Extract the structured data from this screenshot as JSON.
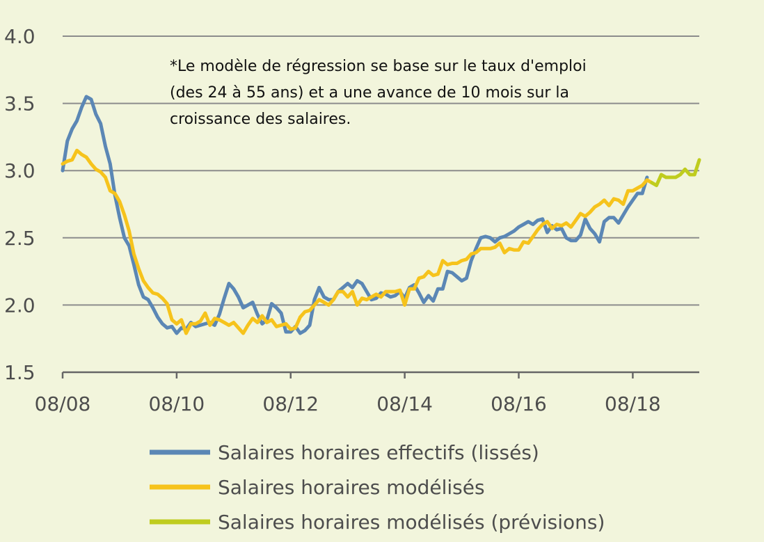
{
  "chart_data": {
    "type": "line",
    "title": "",
    "xlabel": "",
    "ylabel": "",
    "ylim": [
      1.5,
      4.0
    ],
    "y_ticks": [
      "1.5",
      "2.0",
      "2.5",
      "3.0",
      "3.5",
      "4.0"
    ],
    "x_ticks": [
      "08/08",
      "08/10",
      "08/12",
      "08/14",
      "08/16",
      "08/18"
    ],
    "x_range": [
      "2008-08",
      "2019-07"
    ],
    "grid": "horizontal",
    "legend_position": "bottom-left",
    "note": [
      "*Le modèle de régression se base sur le taux d'emploi",
      "(des 24 à 55 ans) et a une avance de 10 mois sur la",
      "croissance des salaires."
    ],
    "series": [
      {
        "name": "Salaires horaires effectifs (lissés)",
        "color": "#5b87b5",
        "points": [
          [
            "2008-08",
            3.0
          ],
          [
            "2008-09",
            3.22
          ],
          [
            "2008-10",
            3.31
          ],
          [
            "2008-11",
            3.37
          ],
          [
            "2008-12",
            3.47
          ],
          [
            "2009-01",
            3.55
          ],
          [
            "2009-02",
            3.53
          ],
          [
            "2009-03",
            3.42
          ],
          [
            "2009-04",
            3.35
          ],
          [
            "2009-05",
            3.18
          ],
          [
            "2009-06",
            3.05
          ],
          [
            "2009-07",
            2.82
          ],
          [
            "2009-08",
            2.65
          ],
          [
            "2009-09",
            2.5
          ],
          [
            "2009-10",
            2.44
          ],
          [
            "2009-11",
            2.3
          ],
          [
            "2009-12",
            2.15
          ],
          [
            "2010-01",
            2.06
          ],
          [
            "2010-02",
            2.04
          ],
          [
            "2010-03",
            1.98
          ],
          [
            "2010-04",
            1.91
          ],
          [
            "2010-05",
            1.86
          ],
          [
            "2010-06",
            1.83
          ],
          [
            "2010-07",
            1.84
          ],
          [
            "2010-08",
            1.79
          ],
          [
            "2010-09",
            1.83
          ],
          [
            "2010-10",
            1.82
          ],
          [
            "2010-11",
            1.87
          ],
          [
            "2010-12",
            1.84
          ],
          [
            "2011-01",
            1.85
          ],
          [
            "2011-02",
            1.86
          ],
          [
            "2011-03",
            1.87
          ],
          [
            "2011-04",
            1.85
          ],
          [
            "2011-05",
            1.93
          ],
          [
            "2011-06",
            2.05
          ],
          [
            "2011-07",
            2.16
          ],
          [
            "2011-08",
            2.12
          ],
          [
            "2011-09",
            2.06
          ],
          [
            "2011-10",
            1.98
          ],
          [
            "2011-11",
            2.0
          ],
          [
            "2011-12",
            2.02
          ],
          [
            "2012-01",
            1.93
          ],
          [
            "2012-02",
            1.86
          ],
          [
            "2012-03",
            1.89
          ],
          [
            "2012-04",
            2.01
          ],
          [
            "2012-05",
            1.98
          ],
          [
            "2012-06",
            1.94
          ],
          [
            "2012-07",
            1.8
          ],
          [
            "2012-08",
            1.8
          ],
          [
            "2012-09",
            1.84
          ],
          [
            "2012-10",
            1.79
          ],
          [
            "2012-11",
            1.81
          ],
          [
            "2012-12",
            1.85
          ],
          [
            "2013-01",
            2.04
          ],
          [
            "2013-02",
            2.13
          ],
          [
            "2013-03",
            2.06
          ],
          [
            "2013-04",
            2.04
          ],
          [
            "2013-05",
            2.04
          ],
          [
            "2013-06",
            2.1
          ],
          [
            "2013-07",
            2.13
          ],
          [
            "2013-08",
            2.16
          ],
          [
            "2013-09",
            2.13
          ],
          [
            "2013-10",
            2.18
          ],
          [
            "2013-11",
            2.16
          ],
          [
            "2013-12",
            2.1
          ],
          [
            "2014-01",
            2.04
          ],
          [
            "2014-02",
            2.05
          ],
          [
            "2014-03",
            2.09
          ],
          [
            "2014-04",
            2.08
          ],
          [
            "2014-05",
            2.06
          ],
          [
            "2014-06",
            2.07
          ],
          [
            "2014-07",
            2.1
          ],
          [
            "2014-08",
            2.05
          ],
          [
            "2014-09",
            2.13
          ],
          [
            "2014-10",
            2.15
          ],
          [
            "2014-11",
            2.09
          ],
          [
            "2014-12",
            2.02
          ],
          [
            "2015-01",
            2.07
          ],
          [
            "2015-02",
            2.03
          ],
          [
            "2015-03",
            2.12
          ],
          [
            "2015-04",
            2.12
          ],
          [
            "2015-05",
            2.25
          ],
          [
            "2015-06",
            2.24
          ],
          [
            "2015-07",
            2.21
          ],
          [
            "2015-08",
            2.18
          ],
          [
            "2015-09",
            2.2
          ],
          [
            "2015-10",
            2.33
          ],
          [
            "2015-11",
            2.42
          ],
          [
            "2015-12",
            2.5
          ],
          [
            "2016-01",
            2.51
          ],
          [
            "2016-02",
            2.5
          ],
          [
            "2016-03",
            2.47
          ],
          [
            "2016-04",
            2.5
          ],
          [
            "2016-05",
            2.51
          ],
          [
            "2016-06",
            2.53
          ],
          [
            "2016-07",
            2.55
          ],
          [
            "2016-08",
            2.58
          ],
          [
            "2016-09",
            2.6
          ],
          [
            "2016-10",
            2.62
          ],
          [
            "2016-11",
            2.6
          ],
          [
            "2016-12",
            2.63
          ],
          [
            "2017-01",
            2.64
          ],
          [
            "2017-02",
            2.54
          ],
          [
            "2017-03",
            2.59
          ],
          [
            "2017-04",
            2.56
          ],
          [
            "2017-05",
            2.57
          ],
          [
            "2017-06",
            2.5
          ],
          [
            "2017-07",
            2.48
          ],
          [
            "2017-08",
            2.48
          ],
          [
            "2017-09",
            2.52
          ],
          [
            "2017-10",
            2.64
          ],
          [
            "2017-11",
            2.57
          ],
          [
            "2017-12",
            2.53
          ],
          [
            "2018-01",
            2.47
          ],
          [
            "2018-02",
            2.62
          ],
          [
            "2018-03",
            2.65
          ],
          [
            "2018-04",
            2.65
          ],
          [
            "2018-05",
            2.61
          ],
          [
            "2018-06",
            2.67
          ],
          [
            "2018-07",
            2.73
          ],
          [
            "2018-08",
            2.78
          ],
          [
            "2018-09",
            2.83
          ],
          [
            "2018-10",
            2.83
          ],
          [
            "2018-11",
            2.95
          ]
        ]
      },
      {
        "name": "Salaires horaires modélisés",
        "color": "#f6c31c",
        "points": [
          [
            "2008-08",
            3.05
          ],
          [
            "2008-09",
            3.07
          ],
          [
            "2008-10",
            3.08
          ],
          [
            "2008-11",
            3.15
          ],
          [
            "2008-12",
            3.12
          ],
          [
            "2009-01",
            3.1
          ],
          [
            "2009-02",
            3.05
          ],
          [
            "2009-03",
            3.01
          ],
          [
            "2009-04",
            2.99
          ],
          [
            "2009-05",
            2.95
          ],
          [
            "2009-06",
            2.85
          ],
          [
            "2009-07",
            2.83
          ],
          [
            "2009-08",
            2.77
          ],
          [
            "2009-09",
            2.67
          ],
          [
            "2009-10",
            2.55
          ],
          [
            "2009-11",
            2.38
          ],
          [
            "2009-12",
            2.27
          ],
          [
            "2010-01",
            2.18
          ],
          [
            "2010-02",
            2.13
          ],
          [
            "2010-03",
            2.09
          ],
          [
            "2010-04",
            2.08
          ],
          [
            "2010-05",
            2.05
          ],
          [
            "2010-06",
            2.01
          ],
          [
            "2010-07",
            1.89
          ],
          [
            "2010-08",
            1.86
          ],
          [
            "2010-09",
            1.89
          ],
          [
            "2010-10",
            1.79
          ],
          [
            "2010-11",
            1.86
          ],
          [
            "2010-12",
            1.86
          ],
          [
            "2011-01",
            1.88
          ],
          [
            "2011-02",
            1.94
          ],
          [
            "2011-03",
            1.85
          ],
          [
            "2011-04",
            1.9
          ],
          [
            "2011-05",
            1.89
          ],
          [
            "2011-06",
            1.87
          ],
          [
            "2011-07",
            1.85
          ],
          [
            "2011-08",
            1.87
          ],
          [
            "2011-09",
            1.83
          ],
          [
            "2011-10",
            1.79
          ],
          [
            "2011-11",
            1.85
          ],
          [
            "2011-12",
            1.9
          ],
          [
            "2012-01",
            1.87
          ],
          [
            "2012-02",
            1.92
          ],
          [
            "2012-03",
            1.87
          ],
          [
            "2012-04",
            1.89
          ],
          [
            "2012-05",
            1.84
          ],
          [
            "2012-06",
            1.85
          ],
          [
            "2012-07",
            1.86
          ],
          [
            "2012-08",
            1.82
          ],
          [
            "2012-09",
            1.83
          ],
          [
            "2012-10",
            1.91
          ],
          [
            "2012-11",
            1.95
          ],
          [
            "2012-12",
            1.96
          ],
          [
            "2013-01",
            2.0
          ],
          [
            "2013-02",
            2.04
          ],
          [
            "2013-03",
            2.02
          ],
          [
            "2013-04",
            2.0
          ],
          [
            "2013-05",
            2.04
          ],
          [
            "2013-06",
            2.1
          ],
          [
            "2013-07",
            2.1
          ],
          [
            "2013-08",
            2.06
          ],
          [
            "2013-09",
            2.1
          ],
          [
            "2013-10",
            2.0
          ],
          [
            "2013-11",
            2.05
          ],
          [
            "2013-12",
            2.04
          ],
          [
            "2014-01",
            2.06
          ],
          [
            "2014-02",
            2.08
          ],
          [
            "2014-03",
            2.06
          ],
          [
            "2014-04",
            2.1
          ],
          [
            "2014-05",
            2.1
          ],
          [
            "2014-06",
            2.1
          ],
          [
            "2014-07",
            2.11
          ],
          [
            "2014-08",
            2.0
          ],
          [
            "2014-09",
            2.12
          ],
          [
            "2014-10",
            2.12
          ],
          [
            "2014-11",
            2.2
          ],
          [
            "2014-12",
            2.21
          ],
          [
            "2015-01",
            2.25
          ],
          [
            "2015-02",
            2.22
          ],
          [
            "2015-03",
            2.23
          ],
          [
            "2015-04",
            2.33
          ],
          [
            "2015-05",
            2.3
          ],
          [
            "2015-06",
            2.31
          ],
          [
            "2015-07",
            2.31
          ],
          [
            "2015-08",
            2.33
          ],
          [
            "2015-09",
            2.34
          ],
          [
            "2015-10",
            2.38
          ],
          [
            "2015-11",
            2.39
          ],
          [
            "2015-12",
            2.42
          ],
          [
            "2016-01",
            2.42
          ],
          [
            "2016-02",
            2.42
          ],
          [
            "2016-03",
            2.43
          ],
          [
            "2016-04",
            2.46
          ],
          [
            "2016-05",
            2.39
          ],
          [
            "2016-06",
            2.42
          ],
          [
            "2016-07",
            2.41
          ],
          [
            "2016-08",
            2.41
          ],
          [
            "2016-09",
            2.47
          ],
          [
            "2016-10",
            2.46
          ],
          [
            "2016-11",
            2.51
          ],
          [
            "2016-12",
            2.56
          ],
          [
            "2017-01",
            2.6
          ],
          [
            "2017-02",
            2.62
          ],
          [
            "2017-03",
            2.57
          ],
          [
            "2017-04",
            2.6
          ],
          [
            "2017-05",
            2.59
          ],
          [
            "2017-06",
            2.61
          ],
          [
            "2017-07",
            2.58
          ],
          [
            "2017-08",
            2.63
          ],
          [
            "2017-09",
            2.68
          ],
          [
            "2017-10",
            2.66
          ],
          [
            "2017-11",
            2.69
          ],
          [
            "2017-12",
            2.73
          ],
          [
            "2018-01",
            2.75
          ],
          [
            "2018-02",
            2.78
          ],
          [
            "2018-03",
            2.74
          ],
          [
            "2018-04",
            2.79
          ],
          [
            "2018-05",
            2.78
          ],
          [
            "2018-06",
            2.75
          ],
          [
            "2018-07",
            2.85
          ],
          [
            "2018-08",
            2.85
          ],
          [
            "2018-09",
            2.87
          ],
          [
            "2018-10",
            2.89
          ],
          [
            "2018-11",
            2.93
          ],
          [
            "2018-12",
            2.91
          ]
        ]
      },
      {
        "name": "Salaires horaires modélisés (prévisions)",
        "color": "#bfcc1e",
        "points": [
          [
            "2018-12",
            2.91
          ],
          [
            "2019-01",
            2.89
          ],
          [
            "2019-02",
            2.97
          ],
          [
            "2019-03",
            2.95
          ],
          [
            "2019-04",
            2.95
          ],
          [
            "2019-05",
            2.95
          ],
          [
            "2019-06",
            2.97
          ],
          [
            "2019-07",
            3.01
          ],
          [
            "2019-08",
            2.97
          ],
          [
            "2019-09",
            2.97
          ],
          [
            "2019-10",
            3.08
          ]
        ]
      }
    ]
  }
}
